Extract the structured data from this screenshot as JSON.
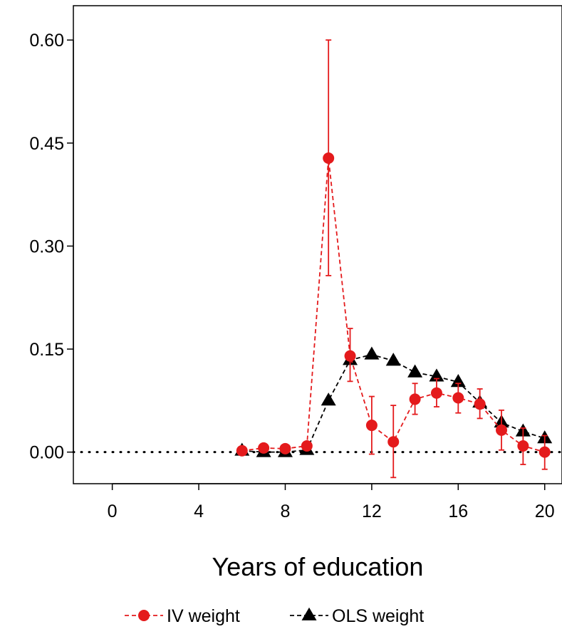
{
  "chart_data": {
    "type": "line",
    "title": "",
    "xlabel": "Years of education",
    "ylabel": "",
    "xlim": [
      -1.8,
      20.8
    ],
    "ylim": [
      -0.046,
      0.65
    ],
    "xticks": [
      0,
      4,
      8,
      12,
      16,
      20
    ],
    "xtick_labels": [
      "0",
      "4",
      "8",
      "12",
      "16",
      "20"
    ],
    "yticks": [
      0,
      0.15,
      0.3,
      0.45,
      0.6
    ],
    "ytick_labels": [
      "0.00",
      "0.15",
      "0.30",
      "0.45",
      "0.60"
    ],
    "reference_line_y": 0,
    "grid": false,
    "legend_position": "bottom",
    "series": [
      {
        "name": "IV weight",
        "color": "#e41a1c",
        "marker": "circle",
        "line_style": "dashed",
        "x": [
          6,
          7,
          8,
          9,
          10,
          11,
          12,
          13,
          14,
          15,
          16,
          17,
          18,
          19,
          20
        ],
        "y": [
          0.002,
          0.006,
          0.005,
          0.009,
          0.428,
          0.14,
          0.039,
          0.015,
          0.077,
          0.086,
          0.079,
          0.07,
          0.032,
          0.009,
          0.0
        ],
        "lower": [
          0.0,
          0.002,
          0.001,
          0.003,
          0.257,
          0.103,
          -0.003,
          -0.037,
          0.055,
          0.066,
          0.057,
          0.049,
          0.003,
          -0.018,
          -0.025
        ],
        "upper": [
          0.004,
          0.01,
          0.009,
          0.015,
          0.6,
          0.18,
          0.081,
          0.068,
          0.1,
          0.107,
          0.1,
          0.092,
          0.061,
          0.035,
          0.024
        ]
      },
      {
        "name": "OLS weight",
        "color": "#000000",
        "marker": "triangle",
        "line_style": "dashed",
        "x": [
          6,
          7,
          8,
          9,
          10,
          11,
          12,
          13,
          14,
          15,
          16,
          17,
          18,
          19,
          20
        ],
        "y": [
          0.002,
          0.0,
          0.0,
          0.003,
          0.075,
          0.134,
          0.142,
          0.133,
          0.116,
          0.11,
          0.102,
          0.072,
          0.043,
          0.03,
          0.02
        ]
      }
    ]
  }
}
